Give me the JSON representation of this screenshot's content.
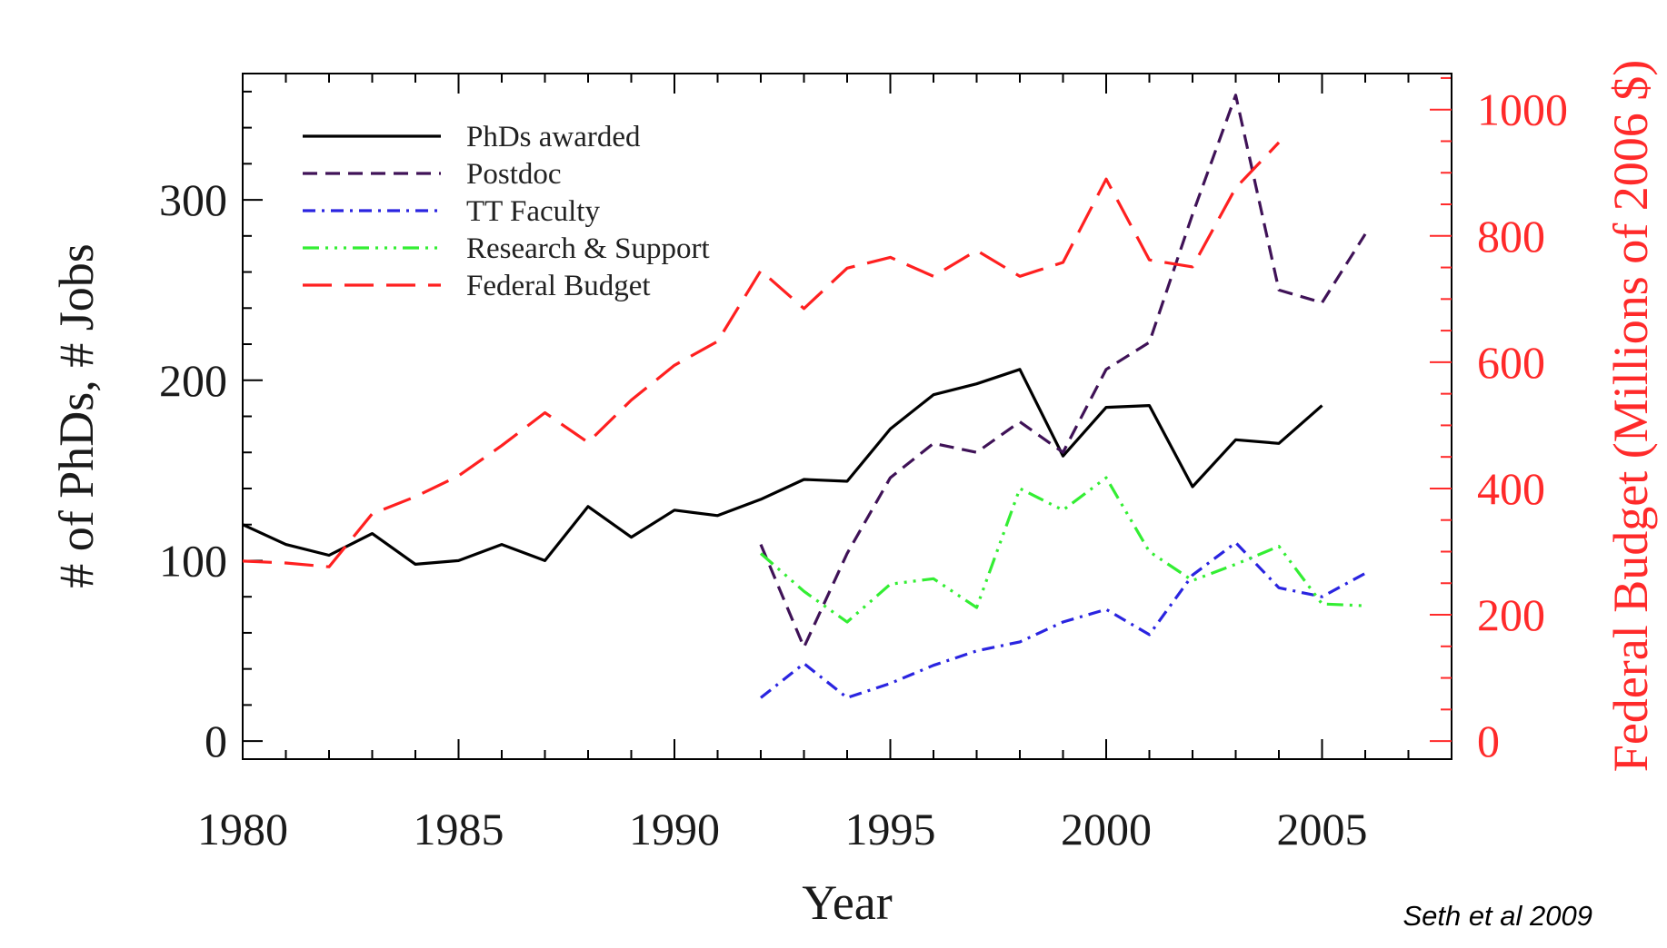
{
  "chart_data": {
    "type": "line",
    "xlabel": "Year",
    "ylabel_left": "# of PhDs, # Jobs",
    "ylabel_right": "Federal Budget (Millions of 2006 $)",
    "xlim": [
      1980,
      2008
    ],
    "ylim_left": [
      -10,
      370
    ],
    "ylim_right": [
      -28.6,
      1057.1
    ],
    "x_ticks": [
      1980,
      1985,
      1990,
      1995,
      2000,
      2005
    ],
    "y_ticks_left": [
      0,
      100,
      200,
      300
    ],
    "y_ticks_right": [
      0,
      200,
      400,
      600,
      800,
      1000
    ],
    "legend_position": "top-left",
    "grid": false,
    "credit": "Seth et al 2009",
    "series": [
      {
        "name": "PhDs awarded",
        "axis": "left",
        "color": "#000000",
        "dash": "solid",
        "x": [
          1980,
          1981,
          1982,
          1983,
          1984,
          1985,
          1986,
          1987,
          1988,
          1989,
          1990,
          1991,
          1992,
          1993,
          1994,
          1995,
          1996,
          1997,
          1998,
          1999,
          2000,
          2001,
          2002,
          2003,
          2004,
          2005
        ],
        "y": [
          120,
          109,
          103,
          115,
          98,
          100,
          109,
          100,
          130,
          113,
          128,
          125,
          134,
          145,
          144,
          173,
          192,
          198,
          206,
          158,
          185,
          186,
          141,
          167,
          165,
          186
        ]
      },
      {
        "name": "Postdoc",
        "axis": "left",
        "color": "#3f1257",
        "dash": "dashed",
        "x": [
          1992,
          1993,
          1994,
          1995,
          1996,
          1997,
          1998,
          1999,
          2000,
          2001,
          2002,
          2003,
          2004,
          2005,
          2006
        ],
        "y": [
          109,
          52,
          104,
          146,
          165,
          160,
          177,
          160,
          206,
          221,
          292,
          358,
          250,
          243,
          281
        ]
      },
      {
        "name": "TT Faculty",
        "axis": "left",
        "color": "#2a24e0",
        "dash": "dashdot",
        "x": [
          1992,
          1993,
          1994,
          1995,
          1996,
          1997,
          1998,
          1999,
          2000,
          2001,
          2002,
          2003,
          2004,
          2005,
          2006
        ],
        "y": [
          24,
          43,
          24,
          32,
          42,
          50,
          55,
          66,
          73,
          59,
          92,
          110,
          85,
          80,
          93
        ]
      },
      {
        "name": "Research & Support",
        "axis": "left",
        "color": "#33ee33",
        "dash": "dashdotdotdot",
        "x": [
          1992,
          1993,
          1994,
          1995,
          1996,
          1997,
          1998,
          1999,
          2000,
          2001,
          2002,
          2003,
          2004,
          2005,
          2006
        ],
        "y": [
          104,
          83,
          66,
          87,
          90,
          74,
          140,
          128,
          146,
          105,
          89,
          98,
          108,
          76,
          75
        ]
      },
      {
        "name": "Federal Budget",
        "axis": "right",
        "color": "#ff2020",
        "dash": "longdash",
        "x": [
          1980,
          1981,
          1982,
          1983,
          1984,
          1985,
          1986,
          1987,
          1988,
          1989,
          1990,
          1991,
          1992,
          1993,
          1994,
          1995,
          1996,
          1997,
          1998,
          1999,
          2000,
          2001,
          2002,
          2003,
          2004
        ],
        "y": [
          285,
          282,
          276,
          360,
          387,
          420,
          468,
          520,
          473,
          540,
          595,
          633,
          745,
          685,
          749,
          766,
          736,
          777,
          736,
          758,
          890,
          762,
          751,
          876,
          948
        ]
      }
    ]
  }
}
